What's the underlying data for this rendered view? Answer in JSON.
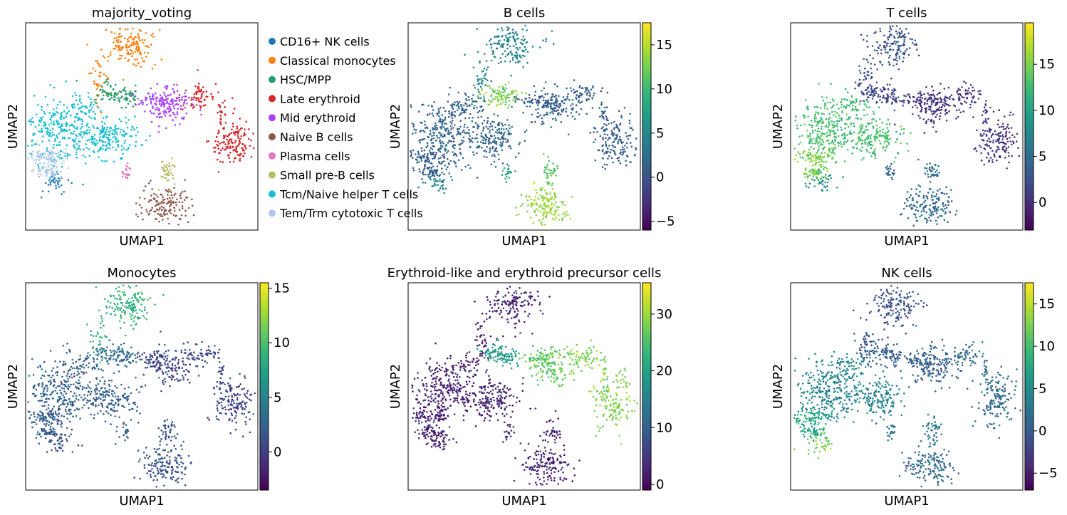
{
  "colors": {
    "viridis": [
      "#440154",
      "#482878",
      "#3e4a89",
      "#31688e",
      "#26828e",
      "#1f9e89",
      "#35b779",
      "#6ece58",
      "#b5de2b",
      "#fde725"
    ]
  },
  "chart_data": [
    {
      "type": "scatter",
      "title": "majority_voting",
      "xlabel": "UMAP1",
      "ylabel": "UMAP2",
      "grid": false,
      "legend_placement": "right",
      "legend": [
        {
          "label": "CD16+ NK cells",
          "color": "#1f77b4"
        },
        {
          "label": "Classical monocytes",
          "color": "#ff7f0e"
        },
        {
          "label": "HSC/MPP",
          "color": "#279e68"
        },
        {
          "label": "Late erythroid",
          "color": "#d62728"
        },
        {
          "label": "Mid erythroid",
          "color": "#aa40fc"
        },
        {
          "label": "Naive B cells",
          "color": "#8c564b"
        },
        {
          "label": "Plasma cells",
          "color": "#e377c2"
        },
        {
          "label": "Small pre-B cells",
          "color": "#b5bd61"
        },
        {
          "label": "Tcm/Naive helper T cells",
          "color": "#17becf"
        },
        {
          "label": "Tem/Trm cytotoxic T cells",
          "color": "#aec7e8"
        }
      ]
    },
    {
      "type": "scatter",
      "title": "B cells",
      "xlabel": "UMAP1",
      "ylabel": "UMAP2",
      "colorbar": {
        "range": [
          -6,
          17.5
        ],
        "ticks": [
          -5,
          0,
          5,
          10,
          15
        ]
      },
      "cluster_levels": [
        0.45,
        0.45,
        0.8,
        0.3,
        0.3,
        0.85,
        0.6,
        0.75,
        0.32,
        0.3
      ]
    },
    {
      "type": "scatter",
      "title": "T cells",
      "xlabel": "UMAP1",
      "ylabel": "UMAP2",
      "colorbar": {
        "range": [
          -3,
          19.5
        ],
        "ticks": [
          0,
          5,
          10,
          15
        ]
      },
      "cluster_levels": [
        0.5,
        0.25,
        0.2,
        0.15,
        0.15,
        0.35,
        0.3,
        0.35,
        0.7,
        0.8
      ]
    },
    {
      "type": "scatter",
      "title": "Monocytes",
      "xlabel": "UMAP1",
      "ylabel": "UMAP2",
      "colorbar": {
        "range": [
          -3.5,
          15.5
        ],
        "ticks": [
          0,
          5,
          10,
          15
        ]
      },
      "cluster_levels": [
        0.25,
        0.65,
        0.35,
        0.2,
        0.2,
        0.25,
        0.3,
        0.25,
        0.3,
        0.3
      ]
    },
    {
      "type": "scatter",
      "title": "Erythroid-like and erythroid precursor cells",
      "xlabel": "UMAP1",
      "ylabel": "UMAP2",
      "colorbar": {
        "range": [
          -1,
          35.5
        ],
        "ticks": [
          0,
          10,
          20,
          30
        ]
      },
      "cluster_levels": [
        0.1,
        0.1,
        0.55,
        0.8,
        0.75,
        0.1,
        0.12,
        0.1,
        0.1,
        0.1
      ]
    },
    {
      "type": "scatter",
      "title": "NK cells",
      "xlabel": "UMAP1",
      "ylabel": "UMAP2",
      "colorbar": {
        "range": [
          -7,
          17.5
        ],
        "ticks": [
          -5,
          0,
          5,
          10,
          15
        ]
      },
      "cluster_levels": [
        0.8,
        0.25,
        0.3,
        0.35,
        0.3,
        0.35,
        0.4,
        0.4,
        0.45,
        0.6
      ]
    }
  ]
}
